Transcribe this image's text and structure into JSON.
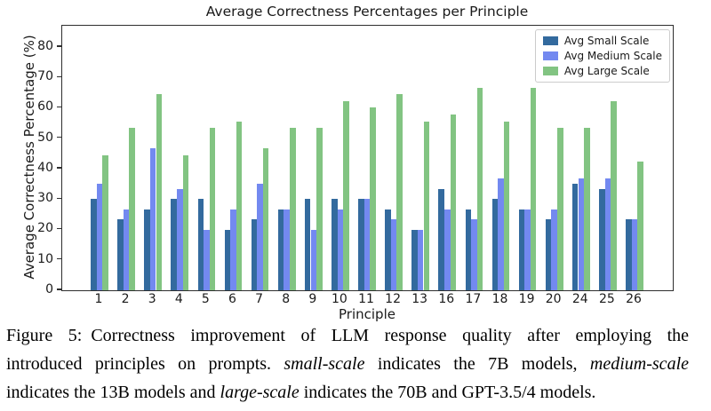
{
  "chart_data": {
    "type": "bar",
    "title": "Average Correctness Percentages per Principle",
    "xlabel": "Principle",
    "ylabel": "Average Correctness Percentage (%)",
    "categories": [
      "1",
      "2",
      "3",
      "4",
      "5",
      "6",
      "7",
      "8",
      "9",
      "10",
      "11",
      "12",
      "13",
      "16",
      "17",
      "18",
      "19",
      "20",
      "24",
      "25",
      "26"
    ],
    "series": [
      {
        "name": "Avg Small Scale",
        "color": "#336a9e",
        "values": [
          30,
          23.3,
          26.7,
          30,
          30,
          20,
          23.3,
          26.7,
          30,
          30,
          30,
          26.7,
          20,
          33.3,
          26.7,
          30,
          26.7,
          23.3,
          35,
          33.3,
          23.3
        ]
      },
      {
        "name": "Avg Medium Scale",
        "color": "#7389f0",
        "values": [
          35,
          26.7,
          46.7,
          33.3,
          20,
          26.7,
          35,
          26.7,
          20,
          26.7,
          30,
          23.3,
          20,
          26.7,
          23.3,
          36.7,
          26.7,
          26.7,
          36.7,
          36.7,
          23.3
        ]
      },
      {
        "name": "Avg Large Scale",
        "color": "#82c482",
        "values": [
          44.4,
          53.3,
          64.4,
          44.4,
          53.3,
          55.6,
          46.7,
          53.3,
          53.3,
          62.2,
          60,
          64.4,
          55.6,
          57.8,
          66.7,
          55.6,
          66.7,
          53.3,
          53.3,
          62.2,
          42.2
        ]
      }
    ],
    "ylim": [
      0,
      87
    ],
    "yticks": [
      0,
      10,
      20,
      30,
      40,
      50,
      60,
      70,
      80
    ],
    "grid": false,
    "legend_position": "upper right"
  },
  "caption": {
    "lines": [
      {
        "justify": true,
        "segments": [
          {
            "t": "Figure 5: Correctness improvement of LLM response quality after employing the",
            "i": false
          }
        ]
      },
      {
        "justify": true,
        "segments": [
          {
            "t": "introduced principles on prompts. ",
            "i": false
          },
          {
            "t": "small-scale",
            "i": true
          },
          {
            "t": " indicates the 7B models, ",
            "i": false
          },
          {
            "t": "medium-scale",
            "i": true
          }
        ]
      },
      {
        "justify": false,
        "segments": [
          {
            "t": "indicates the 13B models and ",
            "i": false
          },
          {
            "t": "large-scale",
            "i": true
          },
          {
            "t": " indicates the 70B and GPT-3.5/4 models.",
            "i": false
          }
        ]
      }
    ]
  }
}
